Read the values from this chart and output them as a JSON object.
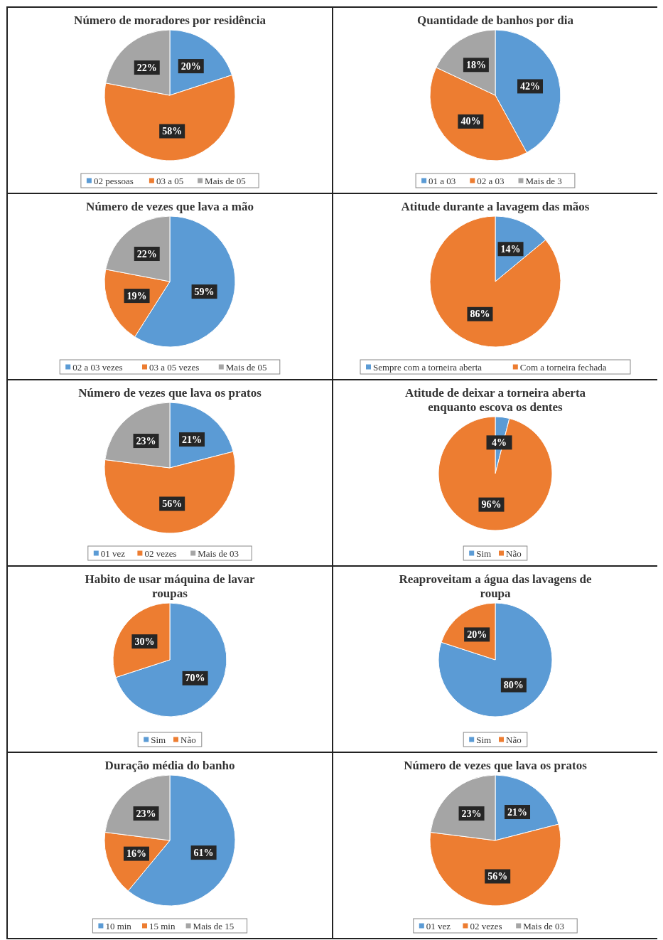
{
  "chart_data": [
    {
      "type": "pie",
      "title": "Número de moradores por residência",
      "categories": [
        "02 pessoas",
        "03 a 05",
        "Mais de 05"
      ],
      "values": [
        20,
        58,
        22
      ],
      "value_labels": [
        "20%",
        "58%",
        "22%"
      ],
      "colors": [
        "#5b9bd5",
        "#ed7d31",
        "#a5a5a5"
      ],
      "legend": "bottom"
    },
    {
      "type": "pie",
      "title": "Quantidade de banhos por dia",
      "categories": [
        "01 a 03",
        "02 a 03",
        "Mais de 3"
      ],
      "values": [
        42,
        40,
        18
      ],
      "value_labels": [
        "42%",
        "40%",
        "18%"
      ],
      "colors": [
        "#5b9bd5",
        "#ed7d31",
        "#a5a5a5"
      ],
      "legend": "bottom"
    },
    {
      "type": "pie",
      "title": "Número de vezes que lava a mão",
      "categories": [
        "02 a 03 vezes",
        "03 a 05 vezes",
        "Mais de 05"
      ],
      "values": [
        59,
        19,
        22
      ],
      "value_labels": [
        "59%",
        "19%",
        "22%"
      ],
      "colors": [
        "#5b9bd5",
        "#ed7d31",
        "#a5a5a5"
      ],
      "legend": "bottom"
    },
    {
      "type": "pie",
      "title": "Atitude durante a lavagem das mãos",
      "categories": [
        "Sempre com a torneira aberta",
        "Com a torneira fechada"
      ],
      "values": [
        14,
        86
      ],
      "value_labels": [
        "14%",
        "86%"
      ],
      "colors": [
        "#5b9bd5",
        "#ed7d31"
      ],
      "legend": "bottom"
    },
    {
      "type": "pie",
      "title": "Número de vezes que lava os pratos",
      "categories": [
        "01 vez",
        "02 vezes",
        "Mais de 03"
      ],
      "values": [
        21,
        56,
        23
      ],
      "value_labels": [
        "21%",
        "56%",
        "23%"
      ],
      "colors": [
        "#5b9bd5",
        "#ed7d31",
        "#a5a5a5"
      ],
      "legend": "bottom"
    },
    {
      "type": "pie",
      "title": "Atitude de deixar a torneira aberta enquanto escova os dentes",
      "categories": [
        "Sim",
        "Não"
      ],
      "values": [
        4,
        96
      ],
      "value_labels": [
        "4%",
        "96%"
      ],
      "colors": [
        "#5b9bd5",
        "#ed7d31"
      ],
      "legend": "bottom"
    },
    {
      "type": "pie",
      "title": "Habito de usar máquina de lavar roupas",
      "categories": [
        "Sim",
        "Não"
      ],
      "values": [
        70,
        30
      ],
      "value_labels": [
        "70%",
        "30%"
      ],
      "colors": [
        "#5b9bd5",
        "#ed7d31"
      ],
      "legend": "bottom"
    },
    {
      "type": "pie",
      "title": "Reaproveitam a água das lavagens de roupa",
      "categories": [
        "Sim",
        "Não"
      ],
      "values": [
        80,
        20
      ],
      "value_labels": [
        "80%",
        "20%"
      ],
      "colors": [
        "#5b9bd5",
        "#ed7d31"
      ],
      "legend": "bottom"
    },
    {
      "type": "pie",
      "title": "Duração média do banho",
      "categories": [
        "10 min",
        "15 min",
        "Mais de 15"
      ],
      "values": [
        61,
        16,
        23
      ],
      "value_labels": [
        "61%",
        "16%",
        "23%"
      ],
      "colors": [
        "#5b9bd5",
        "#ed7d31",
        "#a5a5a5"
      ],
      "legend": "bottom"
    },
    {
      "type": "pie",
      "title": "Número de vezes que lava os pratos",
      "categories": [
        "01 vez",
        "02 vezes",
        "Mais de 03"
      ],
      "values": [
        21,
        56,
        23
      ],
      "value_labels": [
        "21%",
        "56%",
        "23%"
      ],
      "colors": [
        "#5b9bd5",
        "#ed7d31",
        "#a5a5a5"
      ],
      "legend": "bottom"
    }
  ]
}
